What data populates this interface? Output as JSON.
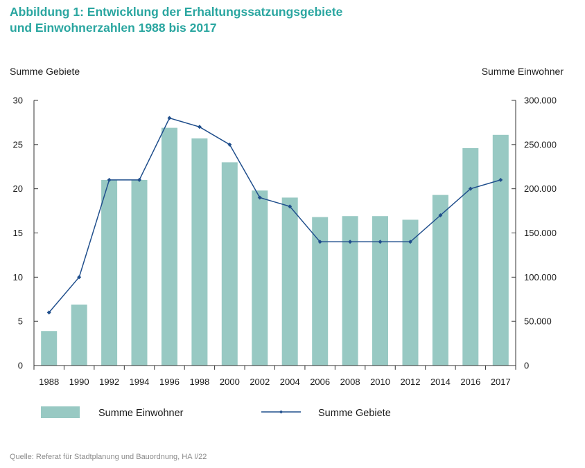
{
  "header": {
    "title_line1": "Abbildung 1: Entwicklung der Erhaltungssatzungsgebiete",
    "title_line2": "und Einwohnerzahlen 1988 bis 2017"
  },
  "source": "Quelle: Referat für Stadtplanung und Bauordnung, HA I/22",
  "colors": {
    "title": "#2aa6a0",
    "bars": "#98c9c3",
    "line": "#1f4e8c",
    "axis": "#333333"
  },
  "chart_data": {
    "type": "bar",
    "categories": [
      "1988",
      "1990",
      "1992",
      "1994",
      "1996",
      "1998",
      "2000",
      "2002",
      "2004",
      "2006",
      "2008",
      "2010",
      "2012",
      "2014",
      "2016",
      "2017"
    ],
    "ylabel_left": "Summe Gebiete",
    "ylabel_right": "Summe Einwohner",
    "ylim_left": [
      0,
      30
    ],
    "ylim_right": [
      0,
      300000
    ],
    "yticks_left": [
      "0",
      "5",
      "10",
      "15",
      "20",
      "25",
      "30"
    ],
    "yticks_right": [
      "0",
      "50.000",
      "100.000",
      "150.000",
      "200.000",
      "250.000",
      "300.000"
    ],
    "grid": false,
    "legend_position": "bottom",
    "series": [
      {
        "name": "Summe Einwohner",
        "type": "bar",
        "axis": "right",
        "values": [
          39000,
          69000,
          210000,
          210000,
          269000,
          257000,
          230000,
          198000,
          190000,
          168000,
          169000,
          169000,
          165000,
          193000,
          246000,
          261000
        ]
      },
      {
        "name": "Summe Gebiete",
        "type": "line",
        "axis": "left",
        "values": [
          6,
          10,
          21,
          21,
          28,
          27,
          25,
          19,
          18,
          14,
          14,
          14,
          14,
          17,
          20,
          21
        ]
      }
    ]
  }
}
